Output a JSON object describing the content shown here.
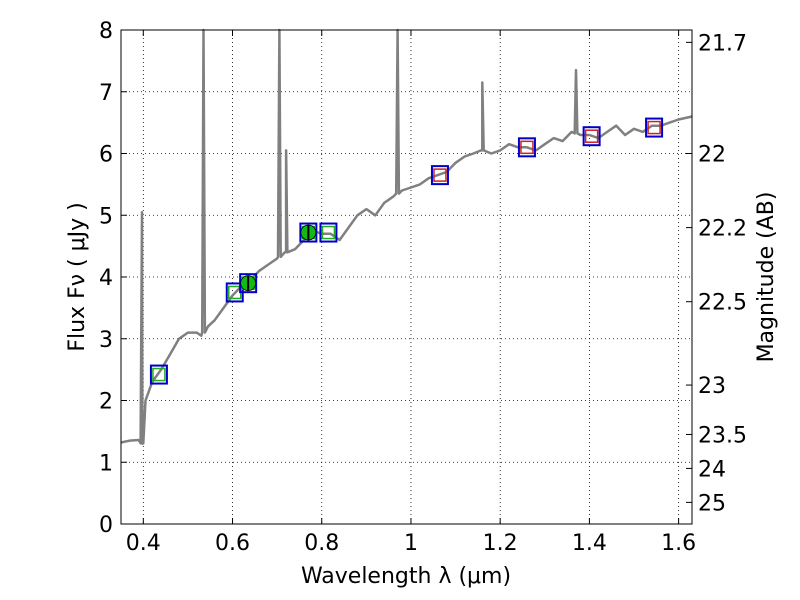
{
  "chart_data": {
    "type": "line",
    "title": "",
    "xlabel": "Wavelength  λ (μm)",
    "ylabel": "Flux  Fν  ( μJy )",
    "y2label": "Magnitude (AB)",
    "xlim": [
      0.35,
      1.63
    ],
    "ylim": [
      0,
      8
    ],
    "grid": true,
    "x_ticks": [
      {
        "value": 0.4,
        "label": "0.4"
      },
      {
        "value": 0.6,
        "label": "0.6"
      },
      {
        "value": 0.8,
        "label": "0.8"
      },
      {
        "value": 1.0,
        "label": "1"
      },
      {
        "value": 1.2,
        "label": "1.2"
      },
      {
        "value": 1.4,
        "label": "1.4"
      },
      {
        "value": 1.6,
        "label": "1.6"
      }
    ],
    "y_ticks": [
      {
        "value": 0,
        "label": "0"
      },
      {
        "value": 1,
        "label": "1"
      },
      {
        "value": 2,
        "label": "2"
      },
      {
        "value": 3,
        "label": "3"
      },
      {
        "value": 4,
        "label": "4"
      },
      {
        "value": 5,
        "label": "5"
      },
      {
        "value": 6,
        "label": "6"
      },
      {
        "value": 7,
        "label": "7"
      },
      {
        "value": 8,
        "label": "8"
      }
    ],
    "y2_ticks": [
      {
        "flux": 7.8,
        "label": "21.7"
      },
      {
        "flux": 6.0,
        "label": "22"
      },
      {
        "flux": 4.8,
        "label": "22.2"
      },
      {
        "flux": 3.6,
        "label": "22.5"
      },
      {
        "flux": 2.25,
        "label": "23"
      },
      {
        "flux": 1.45,
        "label": "23.5"
      },
      {
        "flux": 0.9,
        "label": "24"
      },
      {
        "flux": 0.35,
        "label": "25"
      }
    ],
    "spectrum": {
      "color": "#808080",
      "continuum": [
        [
          0.35,
          1.32
        ],
        [
          0.37,
          1.35
        ],
        [
          0.39,
          1.36
        ],
        [
          0.398,
          1.3
        ],
        [
          0.405,
          2.0
        ],
        [
          0.42,
          2.3
        ],
        [
          0.44,
          2.5
        ],
        [
          0.46,
          2.75
        ],
        [
          0.48,
          3.0
        ],
        [
          0.5,
          3.1
        ],
        [
          0.52,
          3.1
        ],
        [
          0.53,
          3.05
        ],
        [
          0.545,
          3.2
        ],
        [
          0.56,
          3.3
        ],
        [
          0.58,
          3.5
        ],
        [
          0.6,
          3.7
        ],
        [
          0.62,
          3.85
        ],
        [
          0.64,
          3.95
        ],
        [
          0.66,
          4.1
        ],
        [
          0.68,
          4.2
        ],
        [
          0.7,
          4.3
        ],
        [
          0.72,
          4.4
        ],
        [
          0.74,
          4.45
        ],
        [
          0.76,
          4.6
        ],
        [
          0.78,
          4.75
        ],
        [
          0.8,
          4.7
        ],
        [
          0.82,
          4.7
        ],
        [
          0.84,
          4.6
        ],
        [
          0.86,
          4.8
        ],
        [
          0.88,
          5.0
        ],
        [
          0.9,
          5.1
        ],
        [
          0.92,
          5.0
        ],
        [
          0.94,
          5.2
        ],
        [
          0.96,
          5.3
        ],
        [
          0.98,
          5.4
        ],
        [
          1.0,
          5.45
        ],
        [
          1.02,
          5.5
        ],
        [
          1.04,
          5.6
        ],
        [
          1.06,
          5.65
        ],
        [
          1.08,
          5.7
        ],
        [
          1.1,
          5.85
        ],
        [
          1.12,
          5.95
        ],
        [
          1.14,
          6.0
        ],
        [
          1.16,
          6.05
        ],
        [
          1.18,
          6.0
        ],
        [
          1.2,
          6.05
        ],
        [
          1.22,
          6.15
        ],
        [
          1.24,
          6.1
        ],
        [
          1.26,
          6.1
        ],
        [
          1.28,
          6.05
        ],
        [
          1.3,
          6.15
        ],
        [
          1.32,
          6.25
        ],
        [
          1.34,
          6.2
        ],
        [
          1.36,
          6.35
        ],
        [
          1.38,
          6.3
        ],
        [
          1.4,
          6.3
        ],
        [
          1.42,
          6.25
        ],
        [
          1.44,
          6.35
        ],
        [
          1.46,
          6.45
        ],
        [
          1.48,
          6.3
        ],
        [
          1.5,
          6.4
        ],
        [
          1.52,
          6.35
        ],
        [
          1.54,
          6.45
        ],
        [
          1.56,
          6.45
        ],
        [
          1.58,
          6.5
        ],
        [
          1.6,
          6.55
        ],
        [
          1.63,
          6.6
        ]
      ],
      "lines": [
        {
          "x": 0.397,
          "peak": 5.05
        },
        {
          "x": 0.535,
          "peak": 8.0
        },
        {
          "x": 0.705,
          "peak": 8.0
        },
        {
          "x": 0.72,
          "peak": 6.05
        },
        {
          "x": 0.97,
          "peak": 8.0
        },
        {
          "x": 1.16,
          "peak": 7.15
        },
        {
          "x": 1.37,
          "peak": 7.35
        }
      ]
    },
    "photometry": [
      {
        "x": 0.435,
        "y": 2.42,
        "outer": "#0000cc",
        "inner": "#22aa22"
      },
      {
        "x": 0.605,
        "y": 3.75,
        "outer": "#0000cc",
        "inner": "#22aa22"
      },
      {
        "x": 0.635,
        "y": 3.9,
        "outer": "#0000cc",
        "inner": "#22aa22"
      },
      {
        "x": 0.77,
        "y": 4.72,
        "outer": "#0000cc",
        "inner": "#22aa22"
      },
      {
        "x": 0.815,
        "y": 4.72,
        "outer": "#0000cc",
        "inner": "#22aa22"
      },
      {
        "x": 1.065,
        "y": 5.65,
        "outer": "#0000cc",
        "inner": "#cc2222"
      },
      {
        "x": 1.26,
        "y": 6.1,
        "outer": "#0000cc",
        "inner": "#cc2222"
      },
      {
        "x": 1.405,
        "y": 6.28,
        "outer": "#0000cc",
        "inner": "#cc2222"
      },
      {
        "x": 1.545,
        "y": 6.42,
        "outer": "#0000cc",
        "inner": "#cc2222"
      }
    ],
    "measurements": [
      {
        "x": 0.635,
        "y": 3.9,
        "yerr": 0.12,
        "color": "#11bb11"
      },
      {
        "x": 0.77,
        "y": 4.72,
        "yerr": 0.12,
        "color": "#11bb11"
      }
    ]
  }
}
